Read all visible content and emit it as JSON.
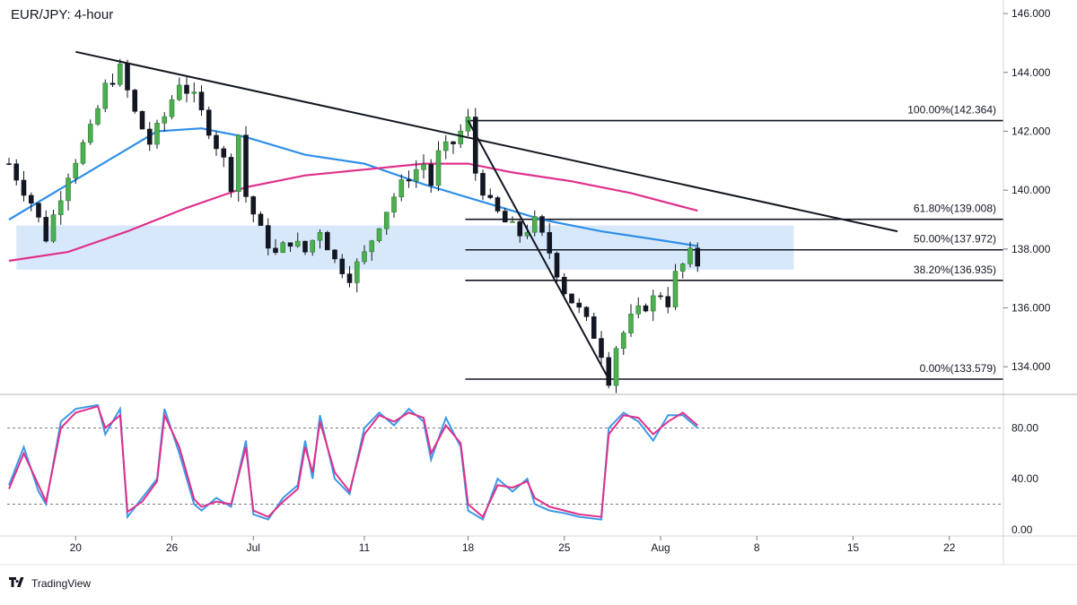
{
  "header": {
    "title": "EUR/JPY: 4-hour"
  },
  "footer": {
    "brand_name": "TradingView",
    "brand_icon": "tradingview-logo-icon"
  },
  "chart_data": [
    {
      "type": "candlestick",
      "symbol": "EUR/JPY",
      "timeframe": "4-hour",
      "x_axis_labels": [
        "20",
        "26",
        "Jul",
        "11",
        "18",
        "25",
        "Aug",
        "8",
        "15",
        "22"
      ],
      "y_axis_labels": [
        "146.000",
        "144.000",
        "142.000",
        "140.000",
        "138.000",
        "136.000",
        "134.000"
      ],
      "ylim": [
        133.0,
        146.4
      ],
      "close_path": [
        [
          0,
          140.9
        ],
        [
          3,
          139.6
        ],
        [
          5,
          138.4
        ],
        [
          8,
          140.6
        ],
        [
          11,
          142.0
        ],
        [
          13,
          143.5
        ],
        [
          15,
          144.1
        ],
        [
          17,
          142.6
        ],
        [
          19,
          141.6
        ],
        [
          21,
          142.5
        ],
        [
          23,
          143.7
        ],
        [
          25,
          143.1
        ],
        [
          27,
          142.1
        ],
        [
          29,
          141.0
        ],
        [
          30,
          140.2
        ],
        [
          31,
          141.9
        ],
        [
          32,
          139.8
        ],
        [
          34,
          138.6
        ],
        [
          36,
          137.8
        ],
        [
          38,
          138.3
        ],
        [
          40,
          137.9
        ],
        [
          42,
          138.7
        ],
        [
          44,
          137.6
        ],
        [
          46,
          137.1
        ],
        [
          48,
          137.8
        ],
        [
          50,
          138.9
        ],
        [
          52,
          139.8
        ],
        [
          54,
          140.5
        ],
        [
          56,
          140.9
        ],
        [
          57,
          140.2
        ],
        [
          58,
          141.2
        ],
        [
          60,
          141.6
        ],
        [
          62,
          142.36
        ],
        [
          63,
          140.6
        ],
        [
          65,
          139.5
        ],
        [
          67,
          138.9
        ],
        [
          69,
          138.5
        ],
        [
          71,
          138.9
        ],
        [
          73,
          137.9
        ],
        [
          75,
          136.6
        ],
        [
          77,
          135.9
        ],
        [
          79,
          135.1
        ],
        [
          80,
          134.5
        ],
        [
          81,
          133.6
        ],
        [
          82,
          134.7
        ],
        [
          84,
          135.6
        ],
        [
          86,
          136.1
        ],
        [
          88,
          136.5
        ],
        [
          89,
          136.2
        ],
        [
          90,
          137.1
        ],
        [
          92,
          137.8
        ],
        [
          93,
          137.5
        ]
      ],
      "moving_averages": [
        {
          "name": "",
          "color": "#2f8fe8",
          "values": [
            [
              0,
              139.0
            ],
            [
              10,
              140.5
            ],
            [
              20,
              142.0
            ],
            [
              26,
              142.1
            ],
            [
              32,
              141.8
            ],
            [
              40,
              141.2
            ],
            [
              48,
              140.9
            ],
            [
              56,
              140.2
            ],
            [
              64,
              139.6
            ],
            [
              72,
              139.0
            ],
            [
              80,
              138.6
            ],
            [
              88,
              138.3
            ],
            [
              93,
              138.1
            ]
          ]
        },
        {
          "name": "",
          "color": "#e0308c",
          "values": [
            [
              0,
              137.6
            ],
            [
              8,
              137.9
            ],
            [
              16,
              138.6
            ],
            [
              24,
              139.4
            ],
            [
              32,
              140.1
            ],
            [
              40,
              140.5
            ],
            [
              48,
              140.7
            ],
            [
              56,
              140.9
            ],
            [
              62,
              140.9
            ],
            [
              68,
              140.6
            ],
            [
              76,
              140.3
            ],
            [
              84,
              139.9
            ],
            [
              93,
              139.3
            ]
          ]
        }
      ],
      "trendlines": [
        {
          "from": [
            9,
            144.7
          ],
          "to": [
            120,
            138.6
          ],
          "color": "#131722"
        },
        {
          "from": [
            62,
            142.364
          ],
          "to": [
            81,
            133.579
          ],
          "color": "#131722"
        }
      ],
      "support_zone": {
        "from_index": 1,
        "to_index": 106,
        "high": 138.8,
        "low": 137.3,
        "color": "#d8e8fb"
      },
      "fibonacci_levels": [
        {
          "label": "100.00%(142.364)",
          "value": 142.364
        },
        {
          "label": "61.80%(139.008)",
          "value": 139.008
        },
        {
          "label": "50.00%(137.972)",
          "value": 137.972
        },
        {
          "label": "38.20%(136.935)",
          "value": 136.935
        },
        {
          "label": "0.00%(133.579)",
          "value": 133.579
        }
      ],
      "fibonacci_start_index": 62
    },
    {
      "type": "line",
      "indicator": "stochastic",
      "y_axis_labels": [
        "80.00",
        "40.00",
        "0.00"
      ],
      "ylim": [
        -5,
        105
      ],
      "reference_lines": [
        80,
        20
      ],
      "series": [
        {
          "name": "",
          "color": "#3b9ae8",
          "values": [
            [
              0,
              35
            ],
            [
              2,
              65
            ],
            [
              4,
              30
            ],
            [
              5,
              20
            ],
            [
              7,
              85
            ],
            [
              9,
              95
            ],
            [
              12,
              98
            ],
            [
              13,
              75
            ],
            [
              15,
              95
            ],
            [
              16,
              10
            ],
            [
              18,
              25
            ],
            [
              20,
              40
            ],
            [
              21,
              95
            ],
            [
              23,
              60
            ],
            [
              25,
              20
            ],
            [
              26,
              15
            ],
            [
              28,
              25
            ],
            [
              30,
              18
            ],
            [
              32,
              70
            ],
            [
              33,
              12
            ],
            [
              35,
              8
            ],
            [
              37,
              25
            ],
            [
              39,
              35
            ],
            [
              40,
              70
            ],
            [
              41,
              40
            ],
            [
              42,
              90
            ],
            [
              44,
              40
            ],
            [
              46,
              28
            ],
            [
              48,
              80
            ],
            [
              50,
              92
            ],
            [
              52,
              82
            ],
            [
              54,
              95
            ],
            [
              56,
              85
            ],
            [
              57,
              55
            ],
            [
              59,
              88
            ],
            [
              61,
              65
            ],
            [
              62,
              15
            ],
            [
              64,
              8
            ],
            [
              66,
              40
            ],
            [
              68,
              30
            ],
            [
              70,
              40
            ],
            [
              71,
              20
            ],
            [
              73,
              15
            ],
            [
              75,
              13
            ],
            [
              77,
              10
            ],
            [
              80,
              8
            ],
            [
              81,
              80
            ],
            [
              83,
              92
            ],
            [
              85,
              85
            ],
            [
              87,
              70
            ],
            [
              89,
              90
            ],
            [
              91,
              90
            ],
            [
              93,
              80
            ]
          ]
        },
        {
          "name": "",
          "color": "#e0308c",
          "values": [
            [
              0,
              32
            ],
            [
              2,
              60
            ],
            [
              4,
              35
            ],
            [
              5,
              22
            ],
            [
              7,
              80
            ],
            [
              9,
              92
            ],
            [
              12,
              97
            ],
            [
              13,
              80
            ],
            [
              15,
              90
            ],
            [
              16,
              14
            ],
            [
              18,
              22
            ],
            [
              20,
              38
            ],
            [
              21,
              90
            ],
            [
              23,
              65
            ],
            [
              25,
              24
            ],
            [
              26,
              18
            ],
            [
              28,
              22
            ],
            [
              30,
              20
            ],
            [
              32,
              65
            ],
            [
              33,
              15
            ],
            [
              35,
              10
            ],
            [
              37,
              22
            ],
            [
              39,
              32
            ],
            [
              40,
              65
            ],
            [
              41,
              45
            ],
            [
              42,
              85
            ],
            [
              44,
              45
            ],
            [
              46,
              30
            ],
            [
              48,
              75
            ],
            [
              50,
              90
            ],
            [
              52,
              85
            ],
            [
              54,
              92
            ],
            [
              56,
              88
            ],
            [
              57,
              60
            ],
            [
              59,
              82
            ],
            [
              61,
              68
            ],
            [
              62,
              20
            ],
            [
              64,
              10
            ],
            [
              66,
              35
            ],
            [
              68,
              33
            ],
            [
              70,
              38
            ],
            [
              71,
              25
            ],
            [
              73,
              18
            ],
            [
              75,
              15
            ],
            [
              77,
              12
            ],
            [
              80,
              10
            ],
            [
              81,
              75
            ],
            [
              83,
              90
            ],
            [
              85,
              88
            ],
            [
              87,
              75
            ],
            [
              89,
              85
            ],
            [
              91,
              92
            ],
            [
              93,
              82
            ]
          ]
        }
      ]
    }
  ]
}
